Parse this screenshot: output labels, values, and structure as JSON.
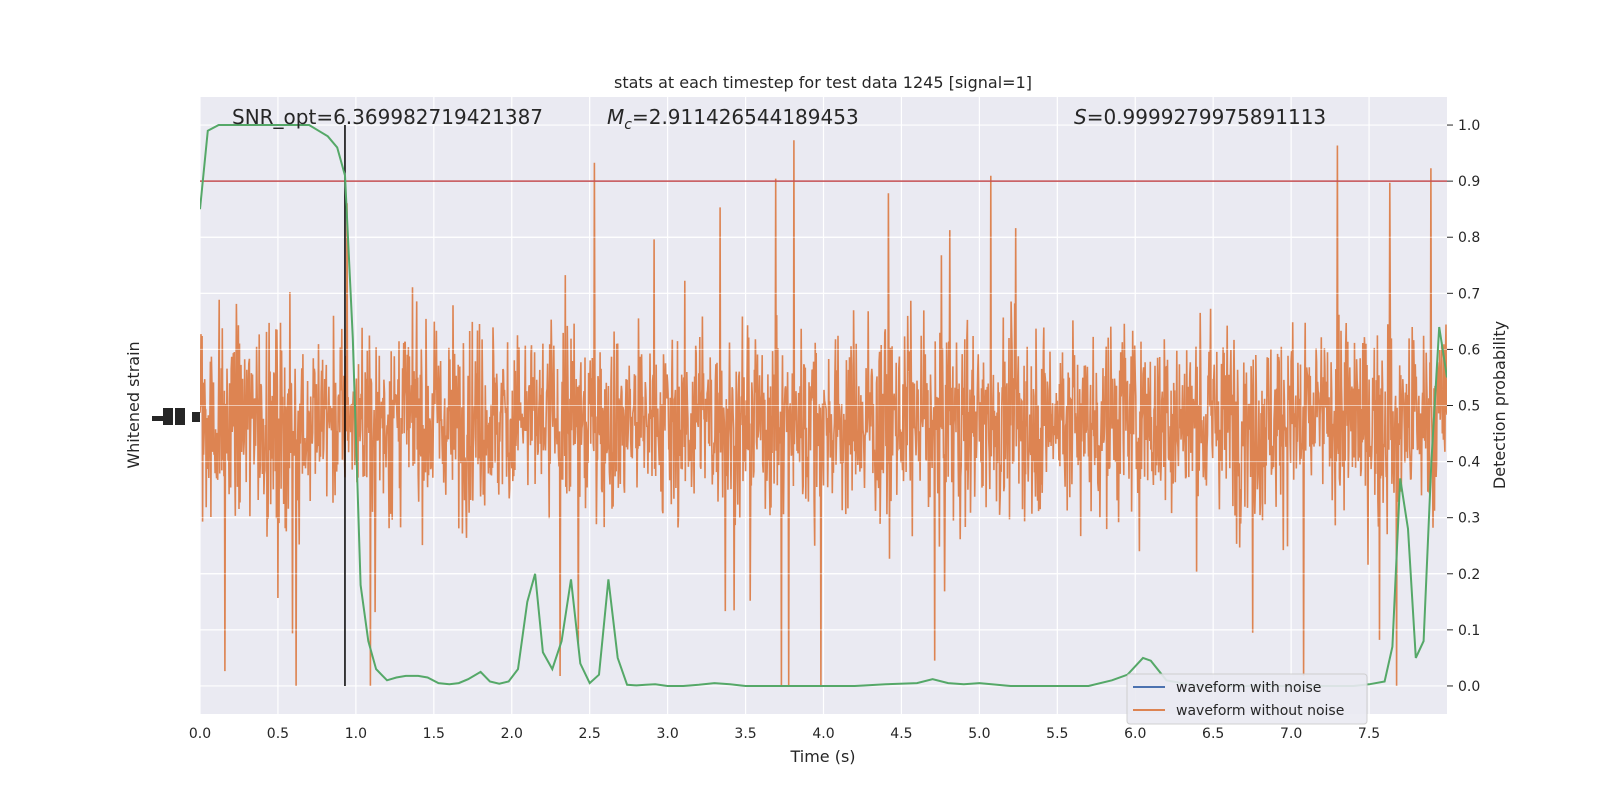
{
  "chart_data": {
    "type": "line",
    "title": "stats at each timestep for test data 1245 [signal=1]",
    "xlabel": "Time (s)",
    "ylabel_left": "Whitened strain",
    "ylabel_right": "Detection probability",
    "xlim": [
      0.0,
      8.0
    ],
    "ylim_right": [
      -0.05,
      1.05
    ],
    "x_ticks": [
      "0.0",
      "0.5",
      "1.0",
      "1.5",
      "2.0",
      "2.5",
      "3.0",
      "3.5",
      "4.0",
      "4.5",
      "5.0",
      "5.5",
      "6.0",
      "6.5",
      "7.0",
      "7.5"
    ],
    "x_tick_values": [
      0.0,
      0.5,
      1.0,
      1.5,
      2.0,
      2.5,
      3.0,
      3.5,
      4.0,
      4.5,
      5.0,
      5.5,
      6.0,
      6.5,
      7.0,
      7.5
    ],
    "y_ticks_right": [
      "0.0",
      "0.1",
      "0.2",
      "0.3",
      "0.4",
      "0.5",
      "0.6",
      "0.7",
      "0.8",
      "0.9",
      "1.0"
    ],
    "y_tick_values_right": [
      0.0,
      0.1,
      0.2,
      0.3,
      0.4,
      0.5,
      0.6,
      0.7,
      0.8,
      0.9,
      1.0
    ],
    "grid": true,
    "legend_position": "lower-right",
    "annotations": {
      "snr": "SNR_opt=6.369982719421387",
      "mc_symbol": "M",
      "mc_sub": "c",
      "mc_value": "=2.911426544189453",
      "s_symbol": "S",
      "s_value": "=0.9999279975891113"
    },
    "threshold": 0.9,
    "vline_x": 0.93,
    "series": [
      {
        "name": "waveform with noise",
        "color": "#4c72b0"
      },
      {
        "name": "waveform without noise",
        "color": "#dd8452"
      }
    ],
    "probability_curve": {
      "color": "#55a868",
      "x": [
        0.0,
        0.05,
        0.12,
        0.2,
        0.3,
        0.4,
        0.5,
        0.6,
        0.7,
        0.76,
        0.82,
        0.88,
        0.93,
        0.98,
        1.03,
        1.08,
        1.13,
        1.2,
        1.26,
        1.32,
        1.4,
        1.46,
        1.53,
        1.6,
        1.66,
        1.72,
        1.8,
        1.86,
        1.92,
        1.98,
        2.04,
        2.1,
        2.15,
        2.2,
        2.26,
        2.32,
        2.38,
        2.44,
        2.5,
        2.56,
        2.62,
        2.68,
        2.74,
        2.8,
        2.86,
        2.92,
        3.0,
        3.1,
        3.2,
        3.3,
        3.4,
        3.5,
        3.7,
        4.0,
        4.2,
        4.4,
        4.6,
        4.7,
        4.8,
        4.9,
        5.0,
        5.2,
        5.5,
        5.7,
        5.85,
        5.95,
        6.05,
        6.1,
        6.2,
        6.4,
        6.6,
        6.8,
        7.0,
        7.2,
        7.4,
        7.5,
        7.6,
        7.65,
        7.7,
        7.75,
        7.8,
        7.85,
        7.9,
        7.95,
        8.0
      ],
      "y": [
        0.85,
        0.99,
        1.0,
        1.0,
        1.0,
        1.0,
        1.0,
        1.0,
        1.0,
        0.99,
        0.98,
        0.96,
        0.91,
        0.62,
        0.18,
        0.08,
        0.03,
        0.01,
        0.015,
        0.018,
        0.018,
        0.015,
        0.005,
        0.003,
        0.005,
        0.012,
        0.025,
        0.008,
        0.004,
        0.008,
        0.03,
        0.15,
        0.2,
        0.06,
        0.03,
        0.08,
        0.19,
        0.04,
        0.005,
        0.02,
        0.19,
        0.05,
        0.002,
        0.001,
        0.002,
        0.003,
        0.0,
        0.0,
        0.002,
        0.005,
        0.003,
        0.0,
        0.0,
        0.0,
        0.0,
        0.003,
        0.005,
        0.012,
        0.005,
        0.003,
        0.005,
        0.0,
        0.0,
        0.0,
        0.01,
        0.02,
        0.05,
        0.045,
        0.01,
        0.0,
        0.0,
        0.0,
        0.0,
        0.0,
        0.0,
        0.003,
        0.008,
        0.07,
        0.37,
        0.28,
        0.05,
        0.08,
        0.4,
        0.64,
        0.55
      ]
    },
    "noise_waveform": {
      "color": "#dd8452",
      "center": 0.475,
      "typical_half_range": 0.22,
      "peak_max": 1.0,
      "peak_min": 0.0
    }
  }
}
